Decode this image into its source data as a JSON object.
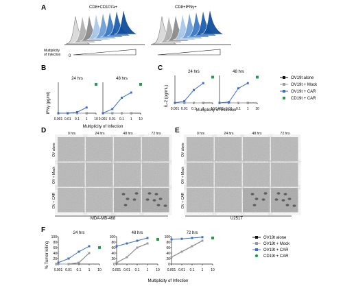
{
  "panels": {
    "A": {
      "label": "A",
      "left_title": "CD8+CD107a+",
      "right_title": "CD8+IFNγ+",
      "moi_label_line1": "Multiplicity",
      "moi_label_line2": "of Infection",
      "moi_zero": "0",
      "histogram_colors": [
        "#d9d9d9",
        "#b0b0b0",
        "#8c8c8c",
        "#a8c8ea",
        "#6fa0d6",
        "#3f7bc4",
        "#1f5fae",
        "#0f4e9a"
      ]
    },
    "B": {
      "label": "B",
      "ylabel": "IFNγ (pg/ml)",
      "xlabel": "Multiplicity of Infection",
      "subplots": [
        {
          "title": "24 hrs",
          "ylim": [
            0,
            6000
          ],
          "y_ticks": []
        },
        {
          "title": "48 hrs",
          "ylim": [
            0,
            6000
          ],
          "y_ticks": []
        }
      ],
      "x_ticks": [
        "0.001",
        "0.01",
        "0.1",
        "1",
        "10"
      ]
    },
    "C": {
      "label": "C",
      "ylabel": "IL-2 (pg/mL)",
      "xlabel": "Multiplicity of Infection",
      "subplots": [
        {
          "title": "24 hrs"
        },
        {
          "title": "48 hrs"
        }
      ],
      "x_ticks": [
        "0.001",
        "0.01",
        "0.1",
        "1",
        "10"
      ]
    },
    "legend_BC": [
      {
        "label": "OV19t alone",
        "color": "#111111",
        "marker": "square"
      },
      {
        "label": "OV19t + Mock",
        "color": "#9a9a9a",
        "marker": "square"
      },
      {
        "label": "OV19t + CAR",
        "color": "#3b6fc9",
        "marker": "square"
      },
      {
        "label": "CD19t + CAR",
        "color": "#1fa04a",
        "marker": "square"
      }
    ],
    "D": {
      "label": "D",
      "timepoints": [
        "0 hrs",
        "24 hrs",
        "48 hrs",
        "72 hrs"
      ],
      "rows": [
        "OV alone",
        "OV + Mock",
        "OV + CAR"
      ],
      "cell_line": "MDA-MB-468"
    },
    "E": {
      "label": "E",
      "timepoints": [
        "0 hrs",
        "24 hrs",
        "48 hrs",
        "72 hrs"
      ],
      "rows": [
        "OV alone",
        "OV + Mock",
        "OV + CAR"
      ],
      "cell_line": "U251T"
    },
    "F": {
      "label": "F",
      "ylabel": "% Tumor killing",
      "xlabel": "Multiplicity of Infection",
      "subplot_titles": [
        "24 hrs",
        "48 hrs",
        "72 hrs"
      ],
      "y_ticks": [
        "0",
        "20",
        "40",
        "60",
        "80",
        "100"
      ],
      "x_ticks": [
        "0.001",
        "0.01",
        "0.1",
        "1",
        "10"
      ],
      "legend": [
        {
          "label": "OV19t alone",
          "color": "#111111"
        },
        {
          "label": "OV19t + Mock",
          "color": "#9a9a9a"
        },
        {
          "label": "OV19t + CAR",
          "color": "#3b6fc9"
        },
        {
          "label": "CD19t + CAR",
          "color": "#1fa04a"
        }
      ]
    }
  },
  "chart_data": [
    {
      "type": "line",
      "title": "24 hrs",
      "ylabel": "IFNγ (pg/ml)",
      "xlabel": "Multiplicity of Infection",
      "x": [
        0.001,
        0.01,
        0.1,
        1
      ],
      "series": [
        {
          "name": "OV19t alone",
          "values": [
            0,
            0,
            0,
            0
          ]
        },
        {
          "name": "OV19t + Mock",
          "values": [
            0,
            0,
            0,
            0
          ]
        },
        {
          "name": "OV19t + CAR",
          "values": [
            0,
            0,
            200,
            1100
          ]
        },
        {
          "name": "CD19t + CAR",
          "values": [
            null,
            null,
            null,
            null
          ],
          "point": {
            "x": 10,
            "y": 5600
          }
        }
      ],
      "ylim": [
        0,
        6000
      ]
    },
    {
      "type": "line",
      "title": "48 hrs",
      "ylabel": "IFNγ (pg/ml)",
      "xlabel": "Multiplicity of Infection",
      "x": [
        0.001,
        0.01,
        0.1,
        1
      ],
      "series": [
        {
          "name": "OV19t alone",
          "values": [
            0,
            0,
            0,
            0
          ]
        },
        {
          "name": "OV19t + Mock",
          "values": [
            0,
            0,
            0,
            0
          ]
        },
        {
          "name": "OV19t + CAR",
          "values": [
            0,
            800,
            3000,
            4000
          ]
        },
        {
          "name": "CD19t + CAR",
          "values": [
            null,
            null,
            null,
            null
          ],
          "point": {
            "x": 10,
            "y": 5600
          }
        }
      ],
      "ylim": [
        0,
        6000
      ]
    },
    {
      "type": "line",
      "title": "24 hrs",
      "ylabel": "IL-2 (pg/mL)",
      "xlabel": "Multiplicity of Infection",
      "x": [
        0.001,
        0.01,
        0.1,
        1
      ],
      "series": [
        {
          "name": "OV19t alone",
          "values": [
            0,
            0,
            0,
            0
          ]
        },
        {
          "name": "OV19t + Mock",
          "values": [
            0,
            0,
            0,
            0
          ]
        },
        {
          "name": "OV19t + CAR",
          "values": [
            0,
            200,
            1500,
            2300
          ]
        },
        {
          "name": "CD19t + CAR",
          "values": [
            null,
            null,
            null,
            null
          ],
          "point": {
            "x": 10,
            "y": 3000
          }
        }
      ],
      "ylim": [
        0,
        3200
      ]
    },
    {
      "type": "line",
      "title": "48 hrs",
      "ylabel": "IL-2 (pg/mL)",
      "xlabel": "Multiplicity of Infection",
      "x": [
        0.001,
        0.01,
        0.1,
        1
      ],
      "series": [
        {
          "name": "OV19t alone",
          "values": [
            0,
            0,
            0,
            0
          ]
        },
        {
          "name": "OV19t + Mock",
          "values": [
            0,
            0,
            0,
            0
          ]
        },
        {
          "name": "OV19t + CAR",
          "values": [
            0,
            100,
            1700,
            2300
          ]
        },
        {
          "name": "CD19t + CAR",
          "values": [
            null,
            null,
            null,
            null
          ],
          "point": {
            "x": 10,
            "y": 3000
          }
        }
      ],
      "ylim": [
        0,
        3200
      ]
    },
    {
      "type": "line",
      "title": "24 hrs",
      "ylabel": "% Tumor killing",
      "xlabel": "Multiplicity of Infection",
      "x": [
        0.001,
        0.01,
        0.1,
        1
      ],
      "series": [
        {
          "name": "OV19t alone",
          "values": [
            0,
            0,
            5,
            40
          ]
        },
        {
          "name": "OV19t + Mock",
          "values": [
            0,
            0,
            5,
            40
          ]
        },
        {
          "name": "OV19t + CAR",
          "values": [
            5,
            20,
            45,
            65
          ]
        },
        {
          "name": "CD19t + CAR",
          "values": [
            null,
            null,
            null,
            null
          ],
          "point": {
            "x": 10,
            "y": 60
          }
        }
      ],
      "ylim": [
        0,
        100
      ]
    },
    {
      "type": "line",
      "title": "48 hrs",
      "ylabel": "% Tumor killing",
      "xlabel": "Multiplicity of Infection",
      "x": [
        0.001,
        0.01,
        0.1,
        1
      ],
      "series": [
        {
          "name": "OV19t alone",
          "values": [
            5,
            25,
            60,
            75
          ]
        },
        {
          "name": "OV19t + Mock",
          "values": [
            5,
            25,
            60,
            75
          ]
        },
        {
          "name": "OV19t + CAR",
          "values": [
            65,
            75,
            85,
            95
          ]
        },
        {
          "name": "CD19t + CAR",
          "values": [
            null,
            null,
            null,
            null
          ],
          "point": {
            "x": 10,
            "y": 90
          }
        }
      ],
      "ylim": [
        0,
        100
      ]
    },
    {
      "type": "line",
      "title": "72 hrs",
      "ylabel": "% Tumor killing",
      "xlabel": "Multiplicity of Infection",
      "x": [
        0.001,
        0.01,
        0.1,
        1
      ],
      "series": [
        {
          "name": "OV19t alone",
          "values": [
            25,
            45,
            65,
            85
          ]
        },
        {
          "name": "OV19t + Mock",
          "values": [
            25,
            45,
            65,
            85
          ]
        },
        {
          "name": "OV19t + CAR",
          "values": [
            90,
            92,
            95,
            98
          ]
        },
        {
          "name": "CD19t + CAR",
          "values": [
            null,
            null,
            null,
            null
          ],
          "point": {
            "x": 10,
            "y": 95
          }
        }
      ],
      "ylim": [
        0,
        100
      ]
    }
  ]
}
